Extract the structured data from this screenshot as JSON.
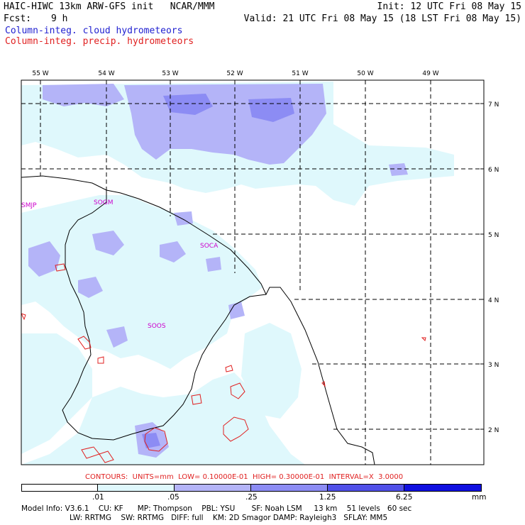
{
  "header": {
    "title_left": "HAIC-HIWC 13km ARW-GFS init   NCAR/MMM",
    "fcst_label": "Fcst:",
    "fcst_value": "9 h",
    "init": "Init: 12 UTC Fri 08 May 15",
    "valid": "Valid: 21 UTC Fri 08 May 15 (18 LST Fri 08 May 15)",
    "legend_cloud": "Column-integ. cloud hydrometeors",
    "legend_precip": "Column-integ. precip. hydrometeors"
  },
  "colors": {
    "cloud_text": "#1f1fd0",
    "precip_text": "#e02020",
    "shade_1": "#dff8fc",
    "shade_2": "#b4b4f8",
    "shade_3": "#8c8cf4",
    "shade_4": "#5050e8",
    "shade_5": "#1010e0",
    "station_labels": "#cc00cc",
    "contours": "#e02020"
  },
  "map": {
    "lon_labels": [
      "55 W",
      "54 W",
      "53 W",
      "52 W",
      "51 W",
      "50 W",
      "49 W"
    ],
    "lat_labels": [
      "7 N",
      "6 N",
      "5 N",
      "4 N",
      "3 N",
      "2 N"
    ],
    "stations": [
      "SMJP",
      "SOGM",
      "SOCA",
      "SOOS"
    ]
  },
  "contour_note": "CONTOURS:  UNITS=mm  LOW= 0.10000E-01  HIGH= 0.30000E-01  INTERVAL=X  3.0000",
  "colorbar": {
    "ticks": [
      ".01",
      ".05",
      ".25",
      "1.25",
      "6.25"
    ],
    "unit": "mm"
  },
  "model_info": {
    "line1": "Model Info: V3.6.1    CU: KF      MP: Thompson    PBL: YSU       SF: Noah LSM     13 km    51 levels   60 sec",
    "line2": "LW: RRTMG    SW: RRTMG   DIFF: full    KM: 2D Smagor DAMP: Rayleigh3   SFLAY: MM5"
  }
}
